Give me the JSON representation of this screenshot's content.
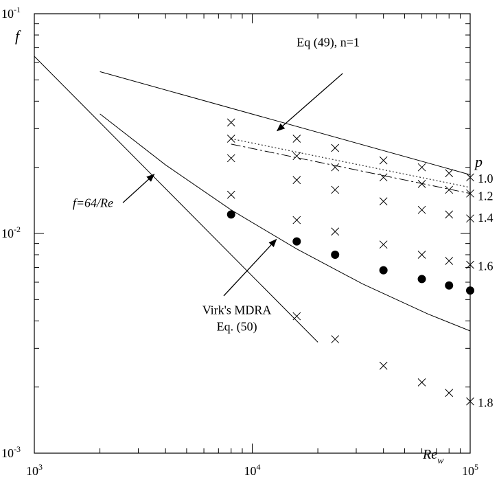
{
  "chart_data": {
    "type": "line",
    "xscale": "log",
    "yscale": "log",
    "xlim": [
      1000,
      100000
    ],
    "ylim": [
      0.001,
      0.1
    ],
    "grid": false,
    "xlabel": "Re",
    "xlabel_sub": "w",
    "ylabel": "f",
    "x_ticks": [
      {
        "value": 1000,
        "base": "10",
        "exp": "3"
      },
      {
        "value": 10000,
        "base": "10",
        "exp": "4"
      },
      {
        "value": 100000,
        "base": "10",
        "exp": "5"
      }
    ],
    "y_ticks": [
      {
        "value": 0.1,
        "base": "10",
        "exp": "-1"
      },
      {
        "value": 0.01,
        "base": "10",
        "exp": "-2"
      },
      {
        "value": 0.001,
        "base": "10",
        "exp": "-3"
      }
    ],
    "lines": [
      {
        "id": "laminar",
        "style": "solid",
        "x": [
          1000,
          20000
        ],
        "y": [
          0.064,
          0.0032
        ]
      },
      {
        "id": "eq49",
        "style": "solid",
        "x": [
          2000,
          100000
        ],
        "y": [
          0.0545,
          0.0185
        ]
      },
      {
        "id": "mdra",
        "style": "solid",
        "x": [
          2000,
          4000,
          8000,
          16000,
          32000,
          64000,
          100000
        ],
        "y": [
          0.035,
          0.0205,
          0.0128,
          0.0085,
          0.0059,
          0.0043,
          0.0036
        ]
      },
      {
        "id": "p-1.0",
        "style": "dotted",
        "x": [
          8000,
          100000
        ],
        "y": [
          0.027,
          0.0162
        ]
      },
      {
        "id": "p-1.2",
        "style": "dashed",
        "x": [
          8000,
          100000
        ],
        "y": [
          0.0255,
          0.0152
        ]
      }
    ],
    "cross_markers": [
      {
        "x": 8000,
        "y": 0.032
      },
      {
        "x": 8000,
        "y": 0.027
      },
      {
        "x": 8000,
        "y": 0.022
      },
      {
        "x": 8000,
        "y": 0.015
      },
      {
        "x": 16000,
        "y": 0.027
      },
      {
        "x": 16000,
        "y": 0.0225
      },
      {
        "x": 16000,
        "y": 0.0175
      },
      {
        "x": 16000,
        "y": 0.0115
      },
      {
        "x": 16000,
        "y": 0.0042
      },
      {
        "x": 24000,
        "y": 0.0245
      },
      {
        "x": 24000,
        "y": 0.02
      },
      {
        "x": 24000,
        "y": 0.0158
      },
      {
        "x": 24000,
        "y": 0.0102
      },
      {
        "x": 24000,
        "y": 0.0033
      },
      {
        "x": 40000,
        "y": 0.0215
      },
      {
        "x": 40000,
        "y": 0.018
      },
      {
        "x": 40000,
        "y": 0.014
      },
      {
        "x": 40000,
        "y": 0.0089
      },
      {
        "x": 40000,
        "y": 0.0025
      },
      {
        "x": 60000,
        "y": 0.02
      },
      {
        "x": 60000,
        "y": 0.0168
      },
      {
        "x": 60000,
        "y": 0.0128
      },
      {
        "x": 60000,
        "y": 0.008
      },
      {
        "x": 60000,
        "y": 0.0021
      },
      {
        "x": 80000,
        "y": 0.0188
      },
      {
        "x": 80000,
        "y": 0.0158
      },
      {
        "x": 80000,
        "y": 0.0122
      },
      {
        "x": 80000,
        "y": 0.0075
      },
      {
        "x": 80000,
        "y": 0.00188
      },
      {
        "x": 100000,
        "y": 0.018
      },
      {
        "x": 100000,
        "y": 0.0152
      },
      {
        "x": 100000,
        "y": 0.0117
      },
      {
        "x": 100000,
        "y": 0.0072
      },
      {
        "x": 100000,
        "y": 0.00172
      }
    ],
    "dot_markers": [
      {
        "x": 8000,
        "y": 0.0122
      },
      {
        "x": 16000,
        "y": 0.0092
      },
      {
        "x": 24000,
        "y": 0.008
      },
      {
        "x": 40000,
        "y": 0.0068
      },
      {
        "x": 60000,
        "y": 0.0062
      },
      {
        "x": 80000,
        "y": 0.0058
      },
      {
        "x": 100000,
        "y": 0.0055
      }
    ],
    "p_header": "p",
    "p_labels": [
      {
        "text": "1.0",
        "y": 0.0178
      },
      {
        "text": "1.2",
        "y": 0.0148
      },
      {
        "text": "1.4",
        "y": 0.0118
      },
      {
        "text": "1.6",
        "y": 0.0071
      },
      {
        "text": "1.8",
        "y": 0.0017
      }
    ],
    "annotations": [
      {
        "id": "ann-eq49",
        "lines": [
          "Eq (49), n=1"
        ],
        "italic": false,
        "text_x": 16000,
        "text_y": 0.071,
        "anchor": "start",
        "arrow_from": [
          26000,
          0.0535
        ],
        "arrow_to": [
          13000,
          0.0293
        ]
      },
      {
        "id": "ann-laminar",
        "lines": [
          "f=64/Re"
        ],
        "italic": true,
        "text_x": 1500,
        "text_y": 0.0132,
        "anchor": "start",
        "arrow_from": [
          2550,
          0.0138
        ],
        "arrow_to": [
          3550,
          0.0186
        ]
      },
      {
        "id": "ann-mdra",
        "lines": [
          "Virk's MDRA",
          "Eq. (50)"
        ],
        "italic": false,
        "text_x": 8500,
        "text_y": 0.0043,
        "anchor": "middle",
        "arrow_from": [
          7400,
          0.0052
        ],
        "arrow_to": [
          12900,
          0.0094
        ]
      }
    ]
  }
}
